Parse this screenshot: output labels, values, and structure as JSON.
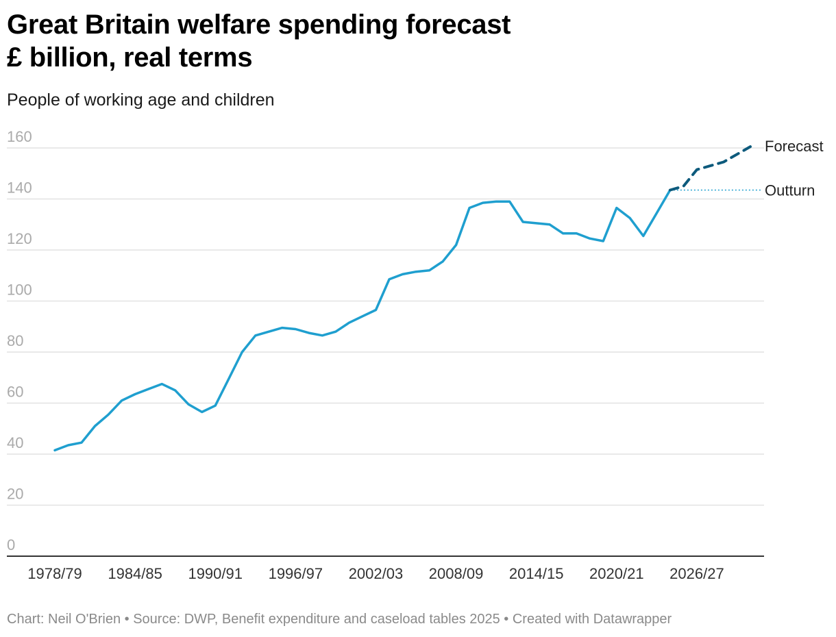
{
  "header": {
    "title_line1": "Great Britain welfare spending forecast",
    "title_line2": "£ billion, real terms",
    "subtitle": "People of working age and children"
  },
  "footer": {
    "credit": "Chart: Neil O'Brien • Source: DWP, Benefit expenditure and caseload tables 2025 • Created with Datawrapper"
  },
  "colors": {
    "outturn": "#1f9fcf",
    "forecast": "#0d5a7c",
    "gridline": "#e2e2e2",
    "axis": "#333333"
  },
  "chart_data": {
    "type": "line",
    "title": "Great Britain welfare spending forecast",
    "subtitle": "£ billion, real terms",
    "xlabel": "",
    "ylabel": "",
    "ylim": [
      0,
      160
    ],
    "yticks": [
      0,
      20,
      40,
      60,
      80,
      100,
      120,
      140,
      160
    ],
    "grid": true,
    "x_start_year": 1978,
    "x_end_year": 2031,
    "xtick_labels": [
      {
        "year": 1978,
        "label": "1978/79"
      },
      {
        "year": 1984,
        "label": "1984/85"
      },
      {
        "year": 1990,
        "label": "1990/91"
      },
      {
        "year": 1996,
        "label": "1996/97"
      },
      {
        "year": 2002,
        "label": "2002/03"
      },
      {
        "year": 2008,
        "label": "2008/09"
      },
      {
        "year": 2014,
        "label": "2014/15"
      },
      {
        "year": 2020,
        "label": "2020/21"
      },
      {
        "year": 2026,
        "label": "2026/27"
      }
    ],
    "series": [
      {
        "name": "Outturn",
        "style": "solid",
        "values": [
          {
            "year": 1978,
            "value": 41.5
          },
          {
            "year": 1979,
            "value": 43.5
          },
          {
            "year": 1980,
            "value": 44.5
          },
          {
            "year": 1981,
            "value": 51
          },
          {
            "year": 1982,
            "value": 55.5
          },
          {
            "year": 1983,
            "value": 61
          },
          {
            "year": 1984,
            "value": 63.5
          },
          {
            "year": 1985,
            "value": 65.5
          },
          {
            "year": 1986,
            "value": 67.5
          },
          {
            "year": 1987,
            "value": 65
          },
          {
            "year": 1988,
            "value": 59.5
          },
          {
            "year": 1989,
            "value": 56.5
          },
          {
            "year": 1990,
            "value": 59
          },
          {
            "year": 1991,
            "value": 69.5
          },
          {
            "year": 1992,
            "value": 80
          },
          {
            "year": 1993,
            "value": 86.5
          },
          {
            "year": 1994,
            "value": 88
          },
          {
            "year": 1995,
            "value": 89.5
          },
          {
            "year": 1996,
            "value": 89
          },
          {
            "year": 1997,
            "value": 87.5
          },
          {
            "year": 1998,
            "value": 86.5
          },
          {
            "year": 1999,
            "value": 88
          },
          {
            "year": 2000,
            "value": 91.5
          },
          {
            "year": 2001,
            "value": 94
          },
          {
            "year": 2002,
            "value": 96.5
          },
          {
            "year": 2003,
            "value": 108.5
          },
          {
            "year": 2004,
            "value": 110.5
          },
          {
            "year": 2005,
            "value": 111.5
          },
          {
            "year": 2006,
            "value": 112
          },
          {
            "year": 2007,
            "value": 115.5
          },
          {
            "year": 2008,
            "value": 122
          },
          {
            "year": 2009,
            "value": 136.5
          },
          {
            "year": 2010,
            "value": 138.5
          },
          {
            "year": 2011,
            "value": 139
          },
          {
            "year": 2012,
            "value": 139
          },
          {
            "year": 2013,
            "value": 131
          },
          {
            "year": 2014,
            "value": 130.5
          },
          {
            "year": 2015,
            "value": 130
          },
          {
            "year": 2016,
            "value": 126.5
          },
          {
            "year": 2017,
            "value": 126.5
          },
          {
            "year": 2018,
            "value": 124.5
          },
          {
            "year": 2019,
            "value": 123.5
          },
          {
            "year": 2020,
            "value": 136.5
          },
          {
            "year": 2021,
            "value": 132.5
          },
          {
            "year": 2022,
            "value": 125.5
          },
          {
            "year": 2023,
            "value": 134.5
          },
          {
            "year": 2024,
            "value": 143.5
          }
        ]
      },
      {
        "name": "Forecast",
        "style": "dashed",
        "values": [
          {
            "year": 2024,
            "value": 143.5
          },
          {
            "year": 2025,
            "value": 145
          },
          {
            "year": 2026,
            "value": 151.5
          },
          {
            "year": 2027,
            "value": 153
          },
          {
            "year": 2028,
            "value": 154.5
          },
          {
            "year": 2029,
            "value": 157.5
          },
          {
            "year": 2030,
            "value": 160.5
          }
        ]
      }
    ],
    "reference_line": {
      "name": "Outturn",
      "value": 143.5,
      "style": "dotted"
    },
    "annotations": [
      {
        "text": "Forecast",
        "series": "Forecast"
      },
      {
        "text": "Outturn",
        "series": "Outturn"
      }
    ]
  }
}
